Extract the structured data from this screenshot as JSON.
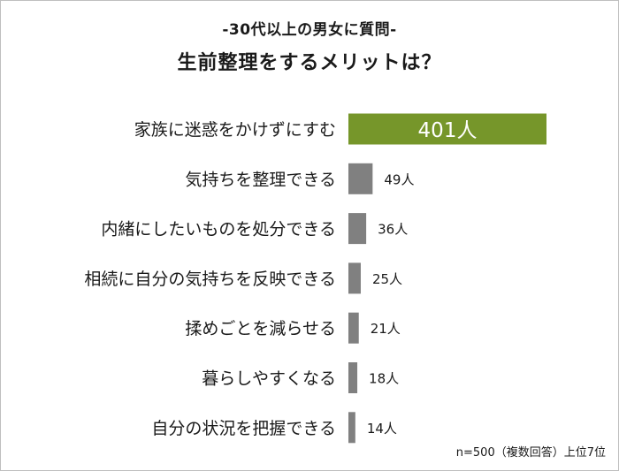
{
  "subtitle": "-30代以上の男女に質問-",
  "title": "生前整理をするメリットは？",
  "note": "n=500（複数回答）上位7位",
  "colors": {
    "highlight": "#76962a",
    "bar": "#808080",
    "highlight_text": "#ffffff"
  },
  "chart_data": {
    "type": "bar",
    "orientation": "horizontal",
    "categories": [
      "家族に迷惑をかけずにすむ",
      "気持ちを整理できる",
      "内緒にしたいものを処分できる",
      "相続に自分の気持ちを反映できる",
      "揉めごとを減らせる",
      "暮らしやすくなる",
      "自分の状況を把握できる"
    ],
    "values": [
      401,
      49,
      36,
      25,
      21,
      18,
      14
    ],
    "value_labels": [
      "401人",
      "49人",
      "36人",
      "25人",
      "21人",
      "18人",
      "14人"
    ],
    "unit": "人",
    "highlight_index": 0,
    "xlim": [
      0,
      401
    ],
    "grid": false,
    "legend": "none"
  }
}
